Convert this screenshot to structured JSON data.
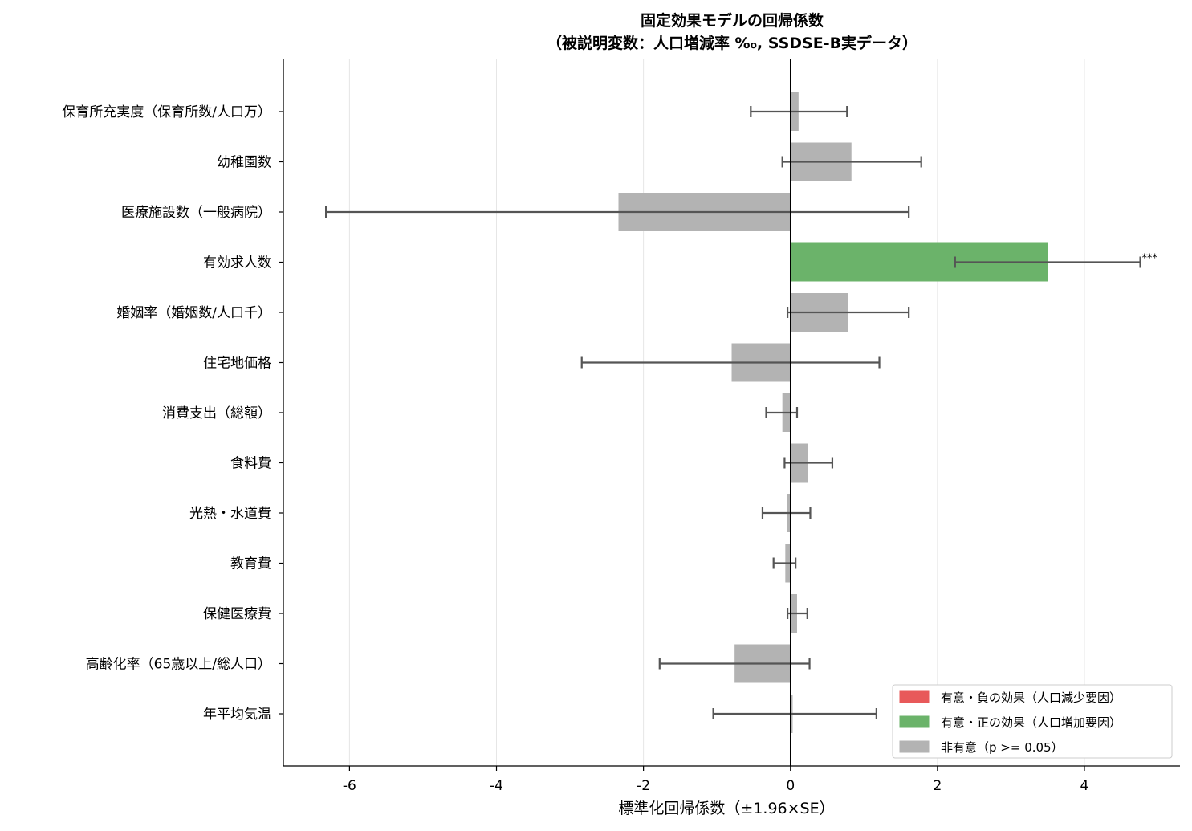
{
  "chart_data": {
    "type": "bar",
    "orientation": "horizontal",
    "title_line1": "固定効果モデルの回帰係数",
    "title_line2": "（被説明変数：人口増減率 ‰, SSDSE-B実データ）",
    "xlabel": "標準化回帰係数（±1.96×SE）",
    "ylabel": "",
    "xlim": [
      -6.9,
      5.3
    ],
    "xticks": [
      -6,
      -4,
      -2,
      0,
      2,
      4
    ],
    "grid_x": true,
    "legend_position": "lower-right",
    "categories": [
      "保育所充実度（保育所数/人口万）",
      "幼稚園数",
      "医療施設数（一般病院）",
      "有効求人数",
      "婚姻率（婚姻数/人口千）",
      "住宅地価格",
      "消費支出（総額）",
      "食料費",
      "光熱・水道費",
      "教育費",
      "保健医療費",
      "高齢化率（65歳以上/総人口）",
      "年平均気温"
    ],
    "values": [
      0.11,
      0.83,
      -2.34,
      3.5,
      0.78,
      -0.8,
      -0.11,
      0.24,
      -0.05,
      -0.07,
      0.09,
      -0.76,
      0.03
    ],
    "ci_low": [
      -0.54,
      -0.11,
      -6.32,
      2.24,
      -0.04,
      -2.84,
      -0.33,
      -0.08,
      -0.38,
      -0.23,
      -0.04,
      -1.78,
      -1.05
    ],
    "ci_high": [
      0.77,
      1.78,
      1.61,
      4.76,
      1.61,
      1.21,
      0.09,
      0.57,
      0.27,
      0.07,
      0.23,
      0.26,
      1.17
    ],
    "significance": [
      "none",
      "none",
      "none",
      "positive",
      "none",
      "none",
      "none",
      "none",
      "none",
      "none",
      "none",
      "none",
      "none"
    ],
    "sig_labels": [
      "",
      "",
      "",
      "***",
      "",
      "",
      "",
      "",
      "",
      "",
      "",
      "",
      ""
    ],
    "colors": {
      "negative": "#e8595a",
      "positive": "#6bb36a",
      "none": "#b3b3b3",
      "error": "#555555"
    },
    "legend": [
      {
        "label": "有意・負の効果（人口減少要因）",
        "key": "negative"
      },
      {
        "label": "有意・正の効果（人口増加要因）",
        "key": "positive"
      },
      {
        "label": "非有意（p >= 0.05）",
        "key": "none"
      }
    ]
  }
}
